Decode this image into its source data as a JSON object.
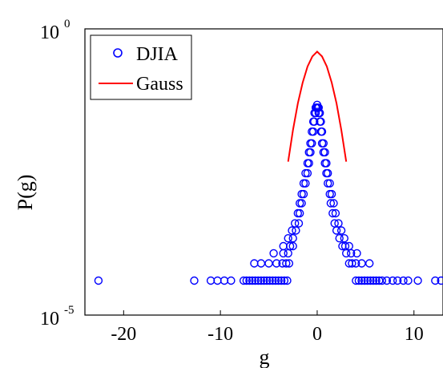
{
  "chart_data": {
    "type": "scatter",
    "xlabel": "g",
    "ylabel": "P(g)",
    "xlim": [
      -24,
      13
    ],
    "ylim_log10": [
      -5,
      0
    ],
    "y_scale": "log",
    "grid": false,
    "legend_placement": "top-left",
    "x_ticks": [
      {
        "value": -20,
        "label": "-20"
      },
      {
        "value": -10,
        "label": "-10"
      },
      {
        "value": 0,
        "label": "0"
      },
      {
        "value": 10,
        "label": "10"
      }
    ],
    "y_ticks": [
      {
        "exp": 0,
        "base": "10",
        "sup": "0"
      },
      {
        "exp": -5,
        "base": "10",
        "sup": "-5"
      }
    ],
    "series": [
      {
        "name": "DJIA",
        "style": "marker-circle-open",
        "color": "#0000ff",
        "points": [
          [
            -22.6,
            4e-05
          ],
          [
            -12.7,
            4e-05
          ],
          [
            -11.0,
            4e-05
          ],
          [
            -10.3,
            4e-05
          ],
          [
            -9.6,
            4e-05
          ],
          [
            -8.9,
            4e-05
          ],
          [
            -7.6,
            4e-05
          ],
          [
            -7.3,
            4e-05
          ],
          [
            -7.0,
            4e-05
          ],
          [
            -6.7,
            4e-05
          ],
          [
            -6.4,
            4e-05
          ],
          [
            -6.1,
            4e-05
          ],
          [
            -5.8,
            4e-05
          ],
          [
            -5.5,
            4e-05
          ],
          [
            -5.2,
            4e-05
          ],
          [
            -4.9,
            4e-05
          ],
          [
            -4.6,
            4e-05
          ],
          [
            -4.3,
            4e-05
          ],
          [
            -4.0,
            4e-05
          ],
          [
            -3.7,
            4e-05
          ],
          [
            -3.4,
            4e-05
          ],
          [
            -3.1,
            4e-05
          ],
          [
            4.0,
            4e-05
          ],
          [
            4.3,
            4e-05
          ],
          [
            4.6,
            4e-05
          ],
          [
            4.9,
            4e-05
          ],
          [
            5.2,
            4e-05
          ],
          [
            5.5,
            4e-05
          ],
          [
            5.8,
            4e-05
          ],
          [
            6.1,
            4e-05
          ],
          [
            6.4,
            4e-05
          ],
          [
            6.7,
            4e-05
          ],
          [
            7.2,
            4e-05
          ],
          [
            7.8,
            4e-05
          ],
          [
            8.3,
            4e-05
          ],
          [
            8.9,
            4e-05
          ],
          [
            9.4,
            4e-05
          ],
          [
            10.4,
            4e-05
          ],
          [
            12.2,
            4e-05
          ],
          [
            12.8,
            4e-05
          ],
          [
            -6.5,
            8e-05
          ],
          [
            -5.8,
            8e-05
          ],
          [
            -5.0,
            8e-05
          ],
          [
            -4.2,
            8e-05
          ],
          [
            -3.6,
            8e-05
          ],
          [
            -3.2,
            8e-05
          ],
          [
            -2.9,
            8e-05
          ],
          [
            3.3,
            8e-05
          ],
          [
            3.6,
            8e-05
          ],
          [
            4.0,
            8e-05
          ],
          [
            4.6,
            8e-05
          ],
          [
            5.4,
            8e-05
          ],
          [
            -4.5,
            0.00012
          ],
          [
            -3.5,
            0.00012
          ],
          [
            -3.0,
            0.00012
          ],
          [
            3.0,
            0.00012
          ],
          [
            3.5,
            0.00012
          ],
          [
            4.1,
            0.00012
          ],
          [
            -3.5,
            0.00016
          ],
          [
            -2.8,
            0.00016
          ],
          [
            -2.5,
            0.00016
          ],
          [
            2.6,
            0.00016
          ],
          [
            2.9,
            0.00016
          ],
          [
            3.3,
            0.00016
          ],
          [
            -3.0,
            0.00022
          ],
          [
            -2.5,
            0.00022
          ],
          [
            2.3,
            0.00022
          ],
          [
            2.8,
            0.00022
          ],
          [
            -2.6,
            0.0003
          ],
          [
            -2.2,
            0.0003
          ],
          [
            2.0,
            0.0003
          ],
          [
            2.5,
            0.0003
          ],
          [
            -2.3,
            0.0004
          ],
          [
            -1.9,
            0.0004
          ],
          [
            1.8,
            0.0004
          ],
          [
            2.2,
            0.0004
          ],
          [
            -2.0,
            0.0006
          ],
          [
            -1.8,
            0.0006
          ],
          [
            1.6,
            0.0006
          ],
          [
            1.9,
            0.0006
          ],
          [
            -1.8,
            0.0009
          ],
          [
            -1.6,
            0.0009
          ],
          [
            1.4,
            0.0009
          ],
          [
            1.7,
            0.0009
          ],
          [
            -1.6,
            0.0013
          ],
          [
            -1.4,
            0.0013
          ],
          [
            1.3,
            0.0013
          ],
          [
            1.5,
            0.0013
          ],
          [
            -1.4,
            0.002
          ],
          [
            -1.2,
            0.002
          ],
          [
            1.1,
            0.002
          ],
          [
            1.3,
            0.002
          ],
          [
            -1.2,
            0.003
          ],
          [
            -1.0,
            0.003
          ],
          [
            0.95,
            0.003
          ],
          [
            1.1,
            0.003
          ],
          [
            -1.0,
            0.0045
          ],
          [
            -0.85,
            0.0045
          ],
          [
            0.8,
            0.0045
          ],
          [
            0.95,
            0.0045
          ],
          [
            -0.85,
            0.007
          ],
          [
            -0.7,
            0.007
          ],
          [
            0.65,
            0.007
          ],
          [
            0.8,
            0.007
          ],
          [
            -0.7,
            0.01
          ],
          [
            -0.55,
            0.01
          ],
          [
            0.5,
            0.01
          ],
          [
            0.65,
            0.01
          ],
          [
            -0.55,
            0.016
          ],
          [
            -0.4,
            0.016
          ],
          [
            0.4,
            0.016
          ],
          [
            0.5,
            0.016
          ],
          [
            -0.4,
            0.024
          ],
          [
            -0.3,
            0.024
          ],
          [
            0.28,
            0.024
          ],
          [
            0.38,
            0.024
          ],
          [
            -0.28,
            0.034
          ],
          [
            -0.15,
            0.034
          ],
          [
            0.15,
            0.034
          ],
          [
            0.27,
            0.034
          ],
          [
            -0.15,
            0.042
          ],
          [
            -0.05,
            0.042
          ],
          [
            0.05,
            0.042
          ],
          [
            0.15,
            0.042
          ],
          [
            0.0,
            0.047
          ]
        ]
      },
      {
        "name": "Gauss",
        "style": "line",
        "color": "#ff0000",
        "points": [
          [
            -3.0,
            0.0048
          ],
          [
            -2.5,
            0.017
          ],
          [
            -2.0,
            0.05
          ],
          [
            -1.5,
            0.115
          ],
          [
            -1.0,
            0.22
          ],
          [
            -0.5,
            0.33
          ],
          [
            0.0,
            0.4
          ],
          [
            0.5,
            0.33
          ],
          [
            1.0,
            0.22
          ],
          [
            1.5,
            0.115
          ],
          [
            2.0,
            0.05
          ],
          [
            2.5,
            0.017
          ],
          [
            3.0,
            0.0048
          ]
        ]
      }
    ]
  }
}
